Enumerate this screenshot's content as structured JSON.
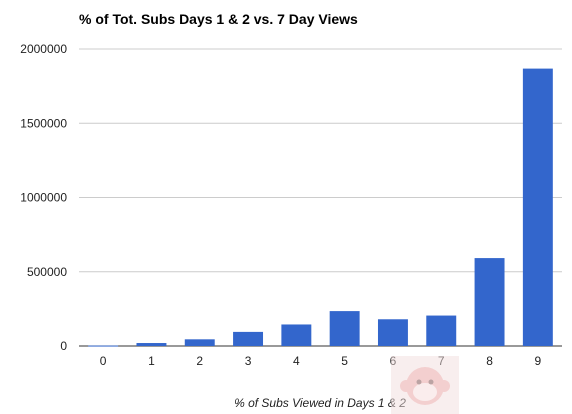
{
  "chart_data": {
    "type": "bar",
    "title": "% of Tot. Subs Days 1 & 2 vs. 7 Day Views",
    "xlabel": "% of Subs Viewed in Days 1 & 2",
    "ylabel": "",
    "categories": [
      "0",
      "1",
      "2",
      "3",
      "4",
      "5",
      "6",
      "7",
      "8",
      "9"
    ],
    "values": [
      3000,
      20000,
      45000,
      95000,
      145000,
      235000,
      180000,
      205000,
      592000,
      1868000
    ],
    "ylim": [
      0,
      2000000
    ],
    "yticks": [
      0,
      500000,
      1000000,
      1500000,
      2000000
    ],
    "ytick_labels": [
      "0",
      "500000",
      "1000000",
      "1500000",
      "2000000"
    ],
    "bar_color": "#3366cc",
    "gridline_color": "#cccccc",
    "grid": true,
    "legend": "none"
  }
}
